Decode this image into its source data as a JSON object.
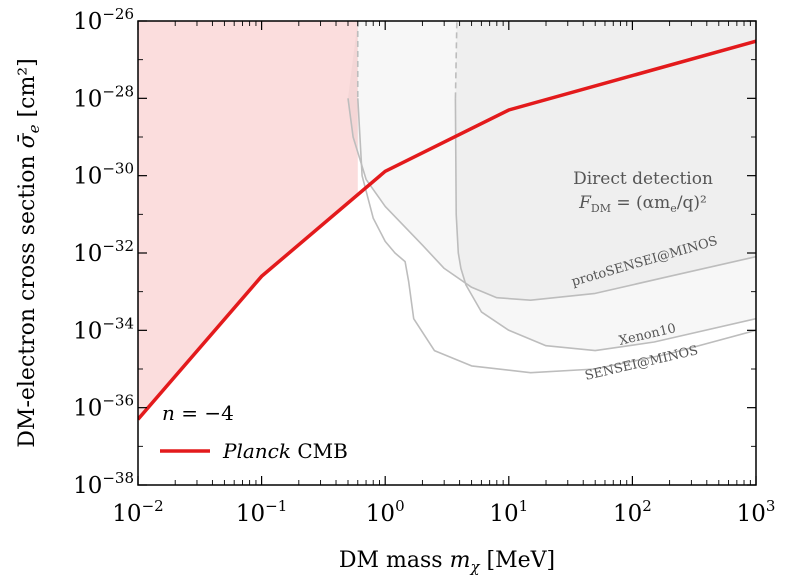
{
  "chart_data": {
    "type": "line",
    "xscale": "log",
    "yscale": "log",
    "xlim": [
      0.01,
      1000
    ],
    "ylim": [
      1e-38,
      1e-26
    ],
    "xlabel_text": "DM mass",
    "xlabel_symbol": "m",
    "xlabel_sub": "χ",
    "xlabel_unit": "[MeV]",
    "ylabel_text": "DM-electron cross section",
    "ylabel_symbol": "σ̄",
    "ylabel_sub": "e",
    "ylabel_unit": "[cm²]",
    "x_ticks": [
      {
        "value": 0.01,
        "base": "10",
        "exp": "−2"
      },
      {
        "value": 0.1,
        "base": "10",
        "exp": "−1"
      },
      {
        "value": 1,
        "base": "10",
        "exp": "0"
      },
      {
        "value": 10,
        "base": "10",
        "exp": "1"
      },
      {
        "value": 100,
        "base": "10",
        "exp": "2"
      },
      {
        "value": 1000,
        "base": "10",
        "exp": "3"
      }
    ],
    "y_ticks": [
      {
        "value": 1e-38,
        "base": "10",
        "exp": "−38"
      },
      {
        "value": 1e-36,
        "base": "10",
        "exp": "−36"
      },
      {
        "value": 1e-34,
        "base": "10",
        "exp": "−34"
      },
      {
        "value": 1e-32,
        "base": "10",
        "exp": "−32"
      },
      {
        "value": 1e-30,
        "base": "10",
        "exp": "−30"
      },
      {
        "value": 1e-28,
        "base": "10",
        "exp": "−28"
      },
      {
        "value": 1e-26,
        "base": "10",
        "exp": "−26"
      }
    ],
    "series": [
      {
        "name": "Planck CMB",
        "name_italic": "Planck",
        "name_rest": "CMB",
        "color": "#e31a1c",
        "x": [
          0.01,
          0.1,
          1,
          10,
          1000
        ],
        "y": [
          5e-37,
          2.5e-33,
          1.3e-30,
          5e-29,
          3e-27
        ]
      },
      {
        "name": "protoSENSEI@MINOS",
        "color": "#bdbdbd",
        "x": [
          0.5,
          0.55,
          0.7,
          1,
          2,
          3,
          5,
          8,
          15,
          50,
          200,
          1000
        ],
        "y": [
          1e-28,
          1e-29,
          8e-31,
          1.6e-31,
          1.6e-32,
          4e-33,
          1.3e-33,
          7e-34,
          6e-34,
          9e-34,
          2.5e-33,
          8e-33
        ]
      },
      {
        "name": "Xenon10",
        "color": "#bdbdbd",
        "x": [
          3.7,
          3.75,
          3.9,
          4.1,
          4.5,
          6,
          10,
          20,
          50,
          150,
          1000
        ],
        "y": [
          1e-28,
          1e-31,
          1e-32,
          4e-33,
          1.5e-33,
          3e-34,
          1e-34,
          4e-35,
          3e-35,
          5e-35,
          2e-34
        ]
      },
      {
        "name": "SENSEI@MINOS",
        "color": "#bdbdbd",
        "x": [
          0.6,
          0.65,
          0.8,
          1.0,
          1.2,
          1.45,
          1.55,
          1.7,
          2.5,
          5,
          15,
          50,
          200,
          1000
        ],
        "y": [
          1e-28,
          1e-30,
          8e-32,
          2e-32,
          1e-32,
          6e-33,
          1.8e-33,
          2e-34,
          3e-35,
          1.2e-35,
          8e-36,
          1e-35,
          2.5e-35,
          1e-34
        ]
      }
    ],
    "dashed_boundaries": [
      {
        "x": [
          0.6,
          0.6
        ],
        "y": [
          1e-26,
          1e-28
        ]
      },
      {
        "x": [
          3.7,
          3.8
        ],
        "y": [
          1e-28,
          1e-26
        ]
      }
    ],
    "excluded_region_cmb": {
      "color": "#e31a1c",
      "opacity": 0.15,
      "x_end": 0.6
    },
    "excluded_region_direct": {
      "color": "#888888",
      "opacity": 0.07
    },
    "annotations": {
      "direct_line1": "Direct detection",
      "direct_line2": "F_DM = (αm_e/q)²",
      "direct_f": "F",
      "direct_f_sub": "DM",
      "direct_rhs": " = (αm",
      "direct_rhs_sub": "e",
      "direct_rhs_end": "/q)²",
      "proto_label": "protoSENSEI@MINOS",
      "xenon_label": "Xenon10",
      "sensei_label": "SENSEI@MINOS",
      "model_label": "n = −4",
      "model_n": "n",
      "model_rest": " = −4"
    },
    "legend_location": "lower-left"
  }
}
